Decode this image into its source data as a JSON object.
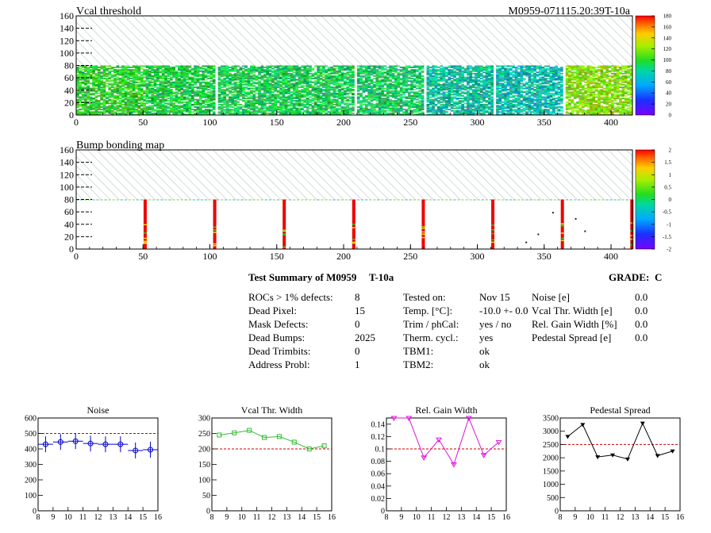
{
  "header": {
    "module_id": "M0959-071115.20:39T-10a"
  },
  "chart_data": [
    {
      "type": "heatmap",
      "title": "Vcal threshold",
      "x_ticks": [
        0,
        50,
        100,
        150,
        200,
        250,
        300,
        350,
        400
      ],
      "y_ticks": [
        0,
        20,
        40,
        60,
        80,
        100,
        120,
        140,
        160
      ],
      "xlim": [
        0,
        416
      ],
      "ylim": [
        0,
        160
      ],
      "filled_rows": [
        0,
        80
      ],
      "roc_boundaries": [
        52,
        104,
        156,
        208,
        260,
        312,
        364
      ],
      "roc_mean_colors": [
        "#33cc33",
        "#22cc44",
        "#22cc55",
        "#22cc55",
        "#22cc66",
        "#11bb99",
        "#11bbaa",
        "#88dd11"
      ],
      "palette": {
        "min": 0,
        "max": 180,
        "ticks": [
          0,
          20,
          40,
          60,
          80,
          100,
          120,
          140,
          160,
          180
        ]
      }
    },
    {
      "type": "heatmap",
      "title": "Bump bonding map",
      "x_ticks": [
        0,
        50,
        100,
        150,
        200,
        250,
        300,
        350,
        400
      ],
      "y_ticks": [
        0,
        20,
        40,
        60,
        80,
        100,
        120,
        140,
        160
      ],
      "xlim": [
        0,
        416
      ],
      "ylim": [
        0,
        160
      ],
      "dead_bump_columns": [
        51,
        103,
        155,
        207,
        259,
        311,
        363,
        415
      ],
      "palette": {
        "min": -2,
        "max": 2,
        "ticks": [
          -2,
          -1.5,
          -1,
          -0.5,
          0,
          0.5,
          1,
          1.5,
          2
        ]
      }
    },
    {
      "type": "line",
      "title": "Noise",
      "x": [
        8.5,
        9.5,
        10.5,
        11.5,
        12.5,
        13.5,
        14.5,
        15.5
      ],
      "values": [
        430,
        445,
        450,
        435,
        430,
        430,
        390,
        395
      ],
      "reference_line": 500,
      "xlim": [
        8,
        16
      ],
      "ylim": [
        0,
        600
      ],
      "x_ticks": [
        8,
        9,
        10,
        11,
        12,
        13,
        14,
        15,
        16
      ],
      "y_ticks": [
        0,
        100,
        200,
        300,
        400,
        500,
        600
      ],
      "color": "#0000cc"
    },
    {
      "type": "line",
      "title": "Vcal Thr. Width",
      "x": [
        8.5,
        9.5,
        10.5,
        11.5,
        12.5,
        13.5,
        14.5,
        15.5
      ],
      "values": [
        245,
        252,
        260,
        237,
        240,
        222,
        200,
        210
      ],
      "reference_line": 200,
      "xlim": [
        8,
        16
      ],
      "ylim": [
        0,
        300
      ],
      "x_ticks": [
        8,
        9,
        10,
        11,
        12,
        13,
        14,
        15,
        16
      ],
      "y_ticks": [
        0,
        50,
        100,
        150,
        200,
        250,
        300
      ],
      "color": "#33bb33"
    },
    {
      "type": "line",
      "title": "Rel. Gain Width",
      "x": [
        8.5,
        9.5,
        10.5,
        11.5,
        12.5,
        13.5,
        14.5,
        15.5
      ],
      "values": [
        0.15,
        0.15,
        0.086,
        0.115,
        0.075,
        0.15,
        0.09,
        0.111
      ],
      "reference_line": 0.1,
      "xlim": [
        8,
        16
      ],
      "ylim": [
        0,
        0.15
      ],
      "x_ticks": [
        8,
        9,
        10,
        11,
        12,
        13,
        14,
        15,
        16
      ],
      "y_ticks": [
        0,
        0.02,
        0.04,
        0.06,
        0.08,
        0.1,
        0.12,
        0.14
      ],
      "y_tick_labels": [
        "0",
        "0.02",
        "0.04",
        "0.06",
        "0.08",
        "0.1",
        "0.12",
        "0.14"
      ],
      "color": "#dd11dd"
    },
    {
      "type": "line",
      "title": "Pedestal Spread",
      "x": [
        8.5,
        9.5,
        10.5,
        11.5,
        12.5,
        13.5,
        14.5,
        15.5
      ],
      "values": [
        2800,
        3250,
        2030,
        2100,
        1950,
        3300,
        2080,
        2250
      ],
      "reference_line": 2500,
      "xlim": [
        8,
        16
      ],
      "ylim": [
        0,
        3500
      ],
      "x_ticks": [
        8,
        9,
        10,
        11,
        12,
        13,
        14,
        15,
        16
      ],
      "y_ticks": [
        0,
        500,
        1000,
        1500,
        2000,
        2500,
        3000,
        3500
      ],
      "color": "#000000"
    }
  ],
  "summary": {
    "title": "Test Summary of M0959",
    "test_name": "T-10a",
    "grade_label": "GRADE:",
    "grade_value": "C",
    "col1_labels": [
      "ROCs > 1% defects:",
      "Dead Pixel:",
      "Mask Defects:",
      "Dead Bumps:",
      "Dead Trimbits:",
      "Address Probl:"
    ],
    "col1_values": [
      "8",
      "15",
      "0",
      "2025",
      "0",
      "1"
    ],
    "col2_labels": [
      "Tested on:",
      "Temp. [°C]:",
      "Trim / phCal:",
      "Therm. cycl.:",
      "TBM1:",
      "TBM2:"
    ],
    "col2_values": [
      "Nov 15",
      "-10.0 +- 0.0",
      "yes / no",
      "yes",
      "ok",
      "ok"
    ],
    "col3_labels": [
      "Noise [e]",
      "Vcal Thr. Width [e]",
      "Rel. Gain Width [%]",
      "Pedestal Spread [e]"
    ],
    "col3_values": [
      "0.0",
      "0.0",
      "0.0",
      "0.0"
    ]
  }
}
